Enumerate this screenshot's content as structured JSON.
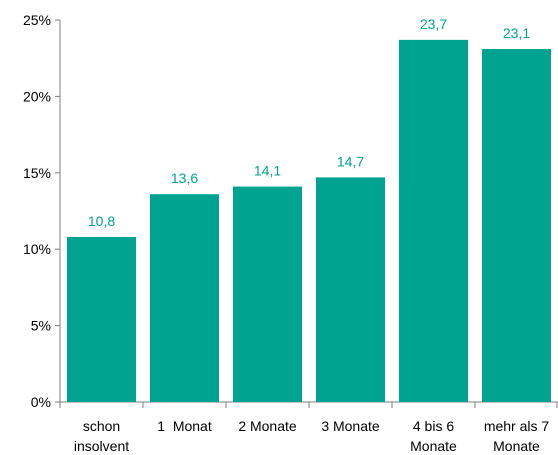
{
  "chart_data": {
    "type": "bar",
    "categories": [
      [
        "schon",
        "insolvent"
      ],
      [
        "1  Monat"
      ],
      [
        "2 Monate"
      ],
      [
        "3 Monate"
      ],
      [
        "4 bis 6",
        "Monate"
      ],
      [
        "mehr als 7",
        "Monate"
      ]
    ],
    "values": [
      10.8,
      13.6,
      14.1,
      14.7,
      23.7,
      23.1
    ],
    "data_labels": [
      "10,8",
      "13,6",
      "14,1",
      "14,7",
      "23,7",
      "23,1"
    ],
    "yticks": [
      0,
      5,
      10,
      15,
      20,
      25
    ],
    "ytick_labels": [
      "0%",
      "5%",
      "10%",
      "15%",
      "20%",
      "25%"
    ],
    "ylim": [
      0,
      25
    ],
    "title": "",
    "xlabel": "",
    "ylabel": "",
    "grid": false,
    "legend": "none",
    "colors": {
      "bar": "#00a390",
      "label": "#00a390",
      "axis": "#7f7f7f"
    }
  }
}
